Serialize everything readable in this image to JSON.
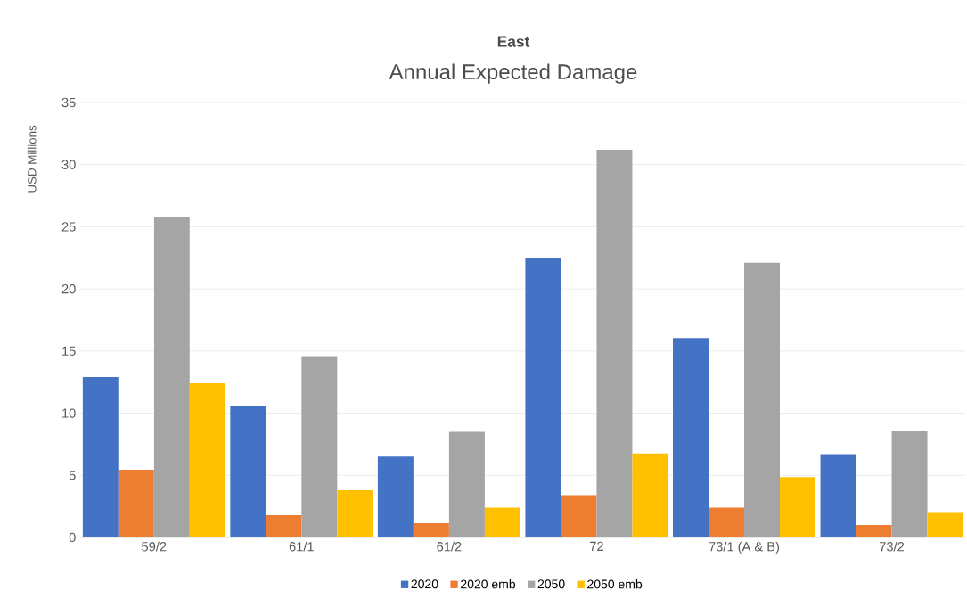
{
  "chart_data": {
    "type": "bar",
    "title": "East",
    "subtitle": "Annual Expected Damage",
    "ylabel": "USD Millions",
    "categories": [
      "59/2",
      "61/1",
      "61/2",
      "72",
      "73/1 (A & B)",
      "73/2"
    ],
    "series": [
      {
        "name": "2020",
        "color": "#4472c4",
        "values": [
          12.9,
          10.6,
          6.5,
          22.5,
          16.05,
          6.7
        ]
      },
      {
        "name": "2020 emb",
        "color": "#ed7d31",
        "values": [
          5.45,
          1.8,
          1.15,
          3.4,
          2.4,
          1.0
        ]
      },
      {
        "name": "2050",
        "color": "#a5a5a5",
        "values": [
          25.75,
          14.6,
          8.5,
          31.2,
          22.1,
          8.6
        ]
      },
      {
        "name": "2050 emb",
        "color": "#ffc000",
        "values": [
          12.4,
          3.8,
          2.4,
          6.75,
          4.85,
          2.05
        ]
      }
    ],
    "ylim": [
      0,
      35
    ],
    "yticks": [
      0,
      5,
      10,
      15,
      20,
      25,
      30,
      35
    ],
    "grid": "y",
    "legend": "bottom"
  }
}
